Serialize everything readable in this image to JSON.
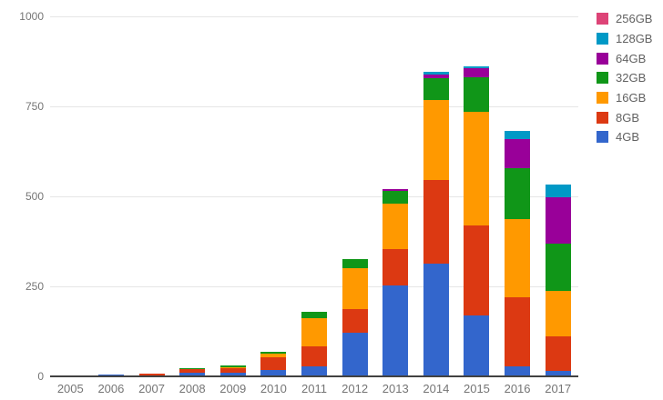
{
  "chart_data": {
    "type": "bar",
    "stacked": true,
    "title": "",
    "xlabel": "",
    "ylabel": "",
    "categories": [
      "2005",
      "2006",
      "2007",
      "2008",
      "2009",
      "2010",
      "2011",
      "2012",
      "2013",
      "2014",
      "2015",
      "2016",
      "2017"
    ],
    "series": [
      {
        "name": "4GB",
        "color": "#3366CC",
        "values": [
          0,
          5,
          2,
          9,
          9,
          18,
          28,
          120,
          253,
          313,
          170,
          27,
          15
        ]
      },
      {
        "name": "8GB",
        "color": "#DC3912",
        "values": [
          0,
          0,
          5,
          11,
          13,
          34,
          56,
          67,
          101,
          232,
          248,
          193,
          96
        ]
      },
      {
        "name": "16GB",
        "color": "#FF9900",
        "values": [
          0,
          0,
          0,
          0,
          3,
          11,
          78,
          114,
          126,
          223,
          318,
          216,
          126
        ]
      },
      {
        "name": "32GB",
        "color": "#109618",
        "values": [
          0,
          0,
          0,
          3,
          5,
          5,
          18,
          25,
          35,
          60,
          96,
          143,
          131
        ]
      },
      {
        "name": "64GB",
        "color": "#990099",
        "values": [
          0,
          0,
          0,
          0,
          0,
          0,
          0,
          0,
          5,
          10,
          23,
          79,
          129
        ]
      },
      {
        "name": "128GB",
        "color": "#0099C6",
        "values": [
          0,
          0,
          0,
          0,
          0,
          0,
          0,
          0,
          0,
          7,
          5,
          25,
          35
        ]
      },
      {
        "name": "256GB",
        "color": "#DD4477",
        "values": [
          0,
          0,
          0,
          0,
          0,
          0,
          0,
          0,
          0,
          0,
          0,
          0,
          0
        ]
      }
    ],
    "legend_order_top_to_bottom": [
      "256GB",
      "128GB",
      "64GB",
      "32GB",
      "16GB",
      "8GB",
      "4GB"
    ],
    "legend_position": "right",
    "ylim": [
      0,
      1000
    ],
    "yticks": [
      0,
      250,
      500,
      750,
      1000
    ],
    "grid": true,
    "colors": {
      "background": "#ffffff",
      "gridline": "#e6e6e6",
      "baseline": "#424242",
      "axis_label": "#757575",
      "legend_label": "#616161"
    }
  }
}
